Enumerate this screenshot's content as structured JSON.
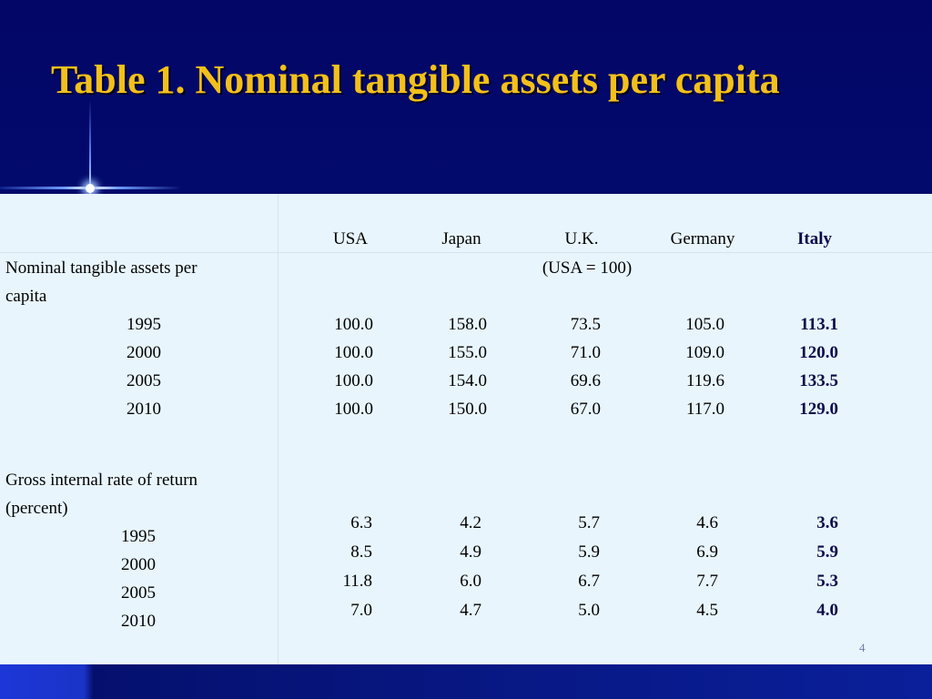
{
  "slide": {
    "title": "Table 1. Nominal tangible assets per capita",
    "page_number": "4"
  },
  "table": {
    "headers": [
      "USA",
      "Japan",
      "U.K.",
      "Germany",
      "Italy"
    ],
    "section1": {
      "label_line1": "Nominal tangible assets per",
      "label_line2": "capita",
      "unit_note": "(USA = 100)",
      "rows": [
        {
          "year": "1995",
          "values": [
            "100.0",
            "158.0",
            "73.5",
            "105.0",
            "113.1"
          ]
        },
        {
          "year": "2000",
          "values": [
            "100.0",
            "155.0",
            "71.0",
            "109.0",
            "120.0"
          ]
        },
        {
          "year": "2005",
          "values": [
            "100.0",
            "154.0",
            "69.6",
            "119.6",
            "133.5"
          ]
        },
        {
          "year": "2010",
          "values": [
            "100.0",
            "150.0",
            "67.0",
            "117.0",
            "129.0"
          ]
        }
      ]
    },
    "section2": {
      "label_line1": "Gross internal rate of return",
      "label_line2": "(percent)",
      "rows": [
        {
          "year": "1995",
          "values": [
            "6.3",
            "4.2",
            "5.7",
            "4.6",
            "3.6"
          ]
        },
        {
          "year": "2000",
          "values": [
            "8.5",
            "4.9",
            "5.9",
            "6.9",
            "5.9"
          ]
        },
        {
          "year": "2005",
          "values": [
            "11.8",
            "6.0",
            "6.7",
            "7.7",
            "5.3"
          ]
        },
        {
          "year": "2010",
          "values": [
            "7.0",
            "4.7",
            "5.0",
            "4.5",
            "4.0"
          ]
        }
      ]
    }
  },
  "colors": {
    "title": "#f3c01a",
    "background": "#000a63",
    "table_bg": "#e8f5fc",
    "highlight_col": "#0a0a4a"
  }
}
